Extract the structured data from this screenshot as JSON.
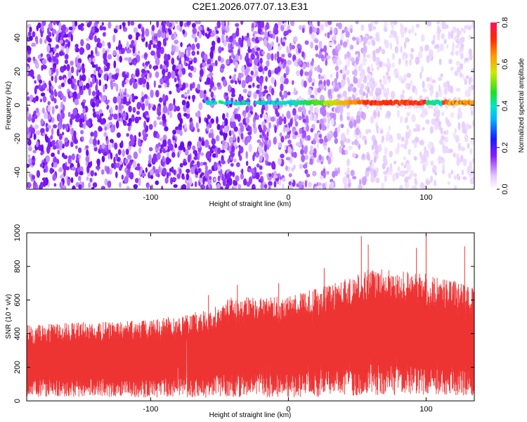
{
  "figure": {
    "title": "C2E1.2026.077.07.13.E31"
  },
  "chart_data": [
    {
      "type": "heatmap",
      "title": "C2E1.2026.077.07.13.E31",
      "xlabel": "Height of straight line (km)",
      "ylabel": "Frequency (Hz)",
      "xlim": [
        -190,
        135
      ],
      "ylim": [
        -50,
        50
      ],
      "xticks": [
        -100,
        0,
        100
      ],
      "yticks": [
        -40,
        -20,
        0,
        20,
        40
      ],
      "colorbar": {
        "label": "Normalized spectral amplitude",
        "range": [
          0,
          0.8
        ],
        "ticks": [
          0.0,
          0.2,
          0.4,
          0.6,
          0.8
        ],
        "colormap": "rainbow (violet-blue-cyan-green-yellow-red)"
      },
      "signal_band": {
        "frequency_hz": 1.5,
        "start_height_km": -60,
        "end_height_km": 135,
        "peak_amplitude": 0.8,
        "peak_height_km_range": [
          55,
          100
        ]
      },
      "noise_background": {
        "amplitude_low_heights": 0.15,
        "amplitude_high_heights": 0.03
      }
    },
    {
      "type": "line",
      "xlabel": "Height of straight line (km)",
      "ylabel": "SNR (10 * v/v)",
      "xlim": [
        -190,
        135
      ],
      "ylim": [
        0,
        1000
      ],
      "xticks": [
        -100,
        0,
        100
      ],
      "yticks": [
        0,
        200,
        400,
        600,
        800,
        1000
      ],
      "series": [
        {
          "name": "SNR",
          "color": "#ee3333",
          "envelope_upper": [
            {
              "x": -190,
              "y": 450
            },
            {
              "x": -150,
              "y": 470
            },
            {
              "x": -100,
              "y": 480
            },
            {
              "x": -60,
              "y": 540
            },
            {
              "x": -40,
              "y": 620
            },
            {
              "x": 0,
              "y": 620
            },
            {
              "x": 30,
              "y": 700
            },
            {
              "x": 60,
              "y": 790
            },
            {
              "x": 100,
              "y": 760
            },
            {
              "x": 135,
              "y": 680
            }
          ],
          "envelope_lower": [
            {
              "x": -190,
              "y": 25
            },
            {
              "x": -100,
              "y": 20
            },
            {
              "x": 0,
              "y": 20
            },
            {
              "x": 50,
              "y": 30
            },
            {
              "x": 100,
              "y": 35
            },
            {
              "x": 135,
              "y": 30
            }
          ],
          "peaks": [
            {
              "x": -58,
              "y": 630
            },
            {
              "x": -37,
              "y": 690
            },
            {
              "x": -7,
              "y": 700
            },
            {
              "x": 26,
              "y": 790
            },
            {
              "x": 53,
              "y": 980
            },
            {
              "x": 58,
              "y": 930
            },
            {
              "x": 93,
              "y": 910
            },
            {
              "x": 100,
              "y": 1000
            },
            {
              "x": 128,
              "y": 920
            }
          ]
        }
      ]
    }
  ]
}
